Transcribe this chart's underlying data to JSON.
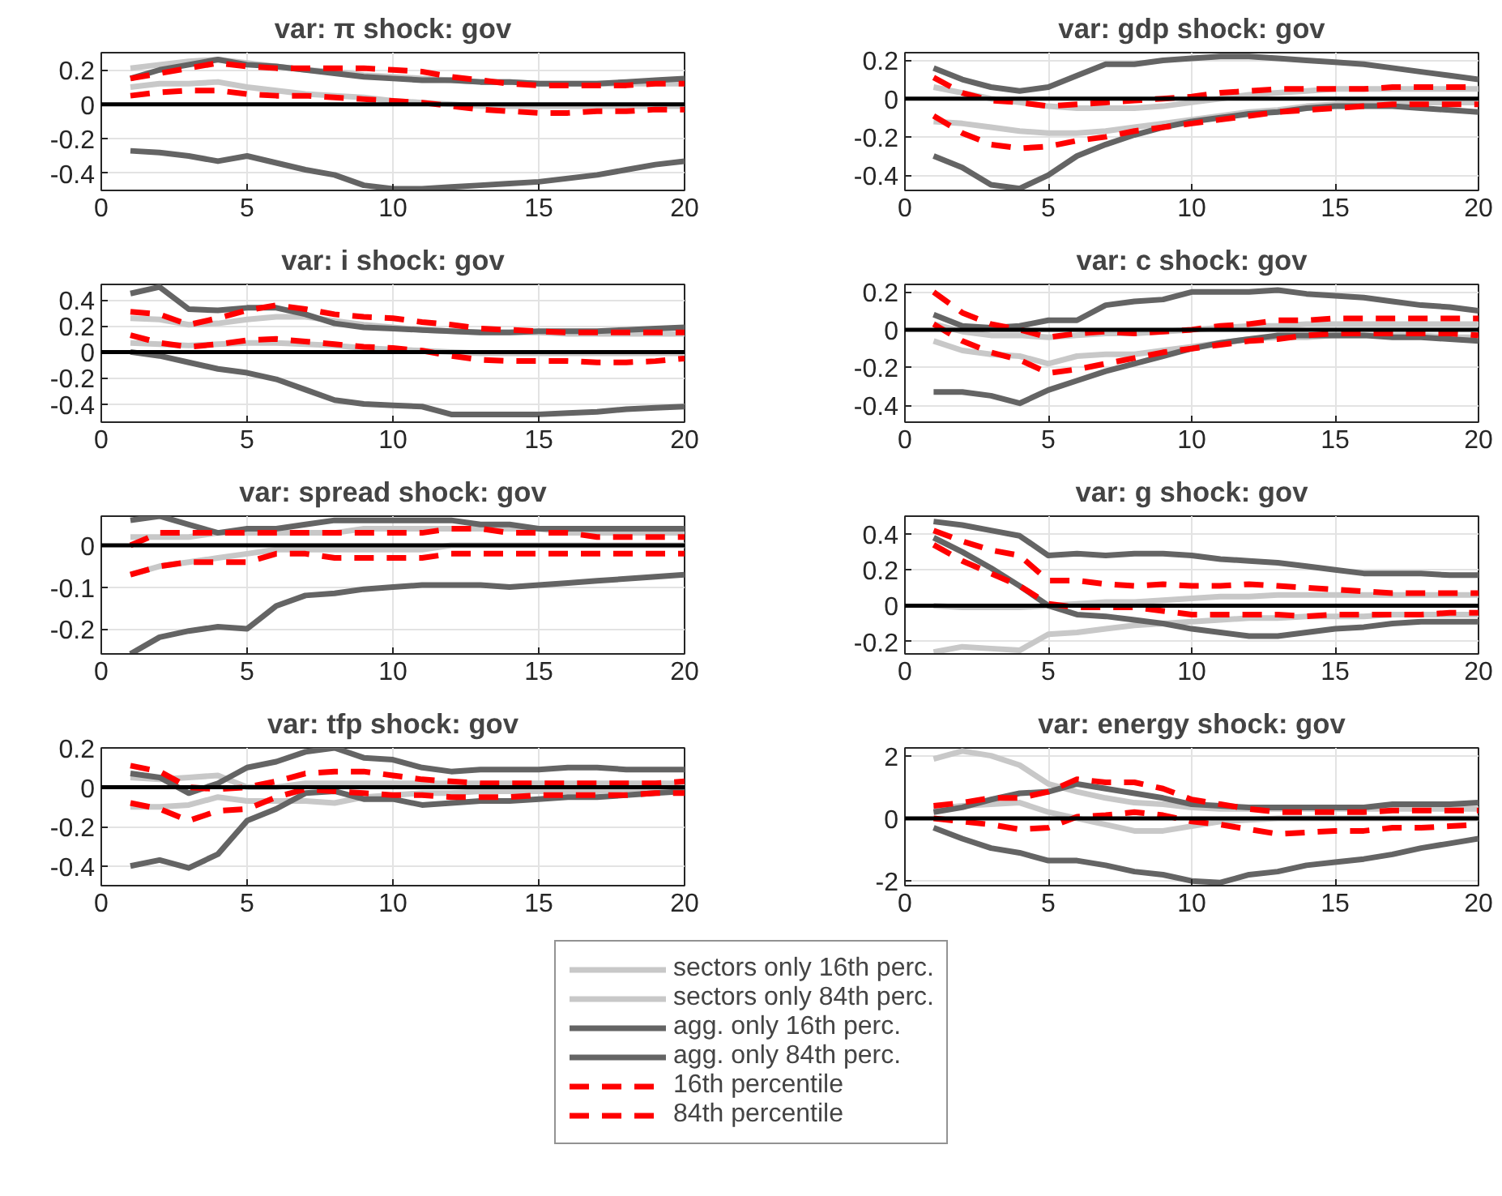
{
  "chart_data": [
    {
      "type": "line",
      "title": "var: π shock: gov",
      "x": [
        1,
        2,
        3,
        4,
        5,
        6,
        7,
        8,
        9,
        10,
        11,
        12,
        13,
        14,
        15,
        16,
        17,
        18,
        19,
        20
      ],
      "xlim": [
        0,
        20
      ],
      "xticks": [
        0,
        5,
        10,
        15,
        20
      ],
      "ylim": [
        -0.5,
        0.3
      ],
      "yticks": [
        -0.4,
        -0.2,
        0,
        0.2
      ],
      "grid": true,
      "legend": "bottom",
      "ref_lines": [
        {
          "axis": "y",
          "value": 0,
          "color": "#000000"
        }
      ],
      "series": [
        {
          "name": "sectors only 16th perc.",
          "color": "#c8c8c8",
          "line_style": "solid",
          "values": [
            0.1,
            0.12,
            0.12,
            0.13,
            0.1,
            0.08,
            0.06,
            0.05,
            0.04,
            0.02,
            0.01,
            0.0,
            -0.01,
            -0.01,
            -0.01,
            -0.01,
            -0.01,
            -0.01,
            -0.01,
            -0.01
          ]
        },
        {
          "name": "sectors only 84th perc.",
          "color": "#c8c8c8",
          "line_style": "solid",
          "values": [
            0.21,
            0.23,
            0.25,
            0.26,
            0.24,
            0.22,
            0.2,
            0.19,
            0.17,
            0.16,
            0.15,
            0.14,
            0.13,
            0.13,
            0.12,
            0.12,
            0.12,
            0.12,
            0.12,
            0.12
          ]
        },
        {
          "name": "agg. only 16th perc.",
          "color": "#646464",
          "line_style": "solid",
          "values": [
            -0.27,
            -0.28,
            -0.3,
            -0.33,
            -0.3,
            -0.34,
            -0.38,
            -0.41,
            -0.47,
            -0.49,
            -0.49,
            -0.48,
            -0.47,
            -0.46,
            -0.45,
            -0.43,
            -0.41,
            -0.38,
            -0.35,
            -0.33
          ]
        },
        {
          "name": "agg. only 84th perc.",
          "color": "#646464",
          "line_style": "solid",
          "values": [
            0.15,
            0.2,
            0.23,
            0.26,
            0.23,
            0.22,
            0.2,
            0.18,
            0.16,
            0.15,
            0.14,
            0.14,
            0.13,
            0.13,
            0.12,
            0.12,
            0.12,
            0.13,
            0.14,
            0.15
          ]
        },
        {
          "name": "16th percentile",
          "color": "#ff0000",
          "line_style": "dashed",
          "values": [
            0.05,
            0.07,
            0.08,
            0.08,
            0.06,
            0.05,
            0.05,
            0.04,
            0.03,
            0.02,
            0.01,
            -0.01,
            -0.03,
            -0.04,
            -0.05,
            -0.05,
            -0.04,
            -0.04,
            -0.03,
            -0.03
          ]
        },
        {
          "name": "84th percentile",
          "color": "#ff0000",
          "line_style": "dashed",
          "values": [
            0.15,
            0.18,
            0.21,
            0.24,
            0.22,
            0.21,
            0.21,
            0.21,
            0.21,
            0.2,
            0.19,
            0.16,
            0.14,
            0.12,
            0.11,
            0.11,
            0.11,
            0.11,
            0.12,
            0.12
          ]
        }
      ]
    },
    {
      "type": "line",
      "title": "var: gdp shock: gov",
      "x": [
        1,
        2,
        3,
        4,
        5,
        6,
        7,
        8,
        9,
        10,
        11,
        12,
        13,
        14,
        15,
        16,
        17,
        18,
        19,
        20
      ],
      "xlim": [
        0,
        20
      ],
      "xticks": [
        0,
        5,
        10,
        15,
        20
      ],
      "ylim": [
        -0.48,
        0.24
      ],
      "yticks": [
        -0.4,
        -0.2,
        0,
        0.2
      ],
      "grid": true,
      "ref_lines": [
        {
          "axis": "y",
          "value": 0,
          "color": "#000000"
        }
      ],
      "series": [
        {
          "color": "#c8c8c8",
          "line_style": "solid",
          "values": [
            -0.12,
            -0.13,
            -0.15,
            -0.17,
            -0.18,
            -0.18,
            -0.17,
            -0.15,
            -0.13,
            -0.11,
            -0.09,
            -0.07,
            -0.06,
            -0.04,
            -0.03,
            -0.02,
            -0.02,
            -0.02,
            -0.02,
            -0.02
          ]
        },
        {
          "color": "#c8c8c8",
          "line_style": "solid",
          "values": [
            0.06,
            0.03,
            0.0,
            -0.02,
            -0.04,
            -0.05,
            -0.05,
            -0.05,
            -0.04,
            -0.02,
            0.0,
            0.02,
            0.03,
            0.04,
            0.05,
            0.05,
            0.05,
            0.05,
            0.05,
            0.05
          ]
        },
        {
          "color": "#646464",
          "line_style": "solid",
          "values": [
            -0.3,
            -0.36,
            -0.45,
            -0.47,
            -0.4,
            -0.3,
            -0.24,
            -0.19,
            -0.15,
            -0.12,
            -0.1,
            -0.08,
            -0.07,
            -0.05,
            -0.04,
            -0.04,
            -0.04,
            -0.05,
            -0.06,
            -0.07
          ]
        },
        {
          "color": "#646464",
          "line_style": "solid",
          "values": [
            0.16,
            0.1,
            0.06,
            0.04,
            0.06,
            0.12,
            0.18,
            0.18,
            0.2,
            0.21,
            0.22,
            0.22,
            0.21,
            0.2,
            0.19,
            0.18,
            0.16,
            0.14,
            0.12,
            0.1
          ]
        },
        {
          "color": "#ff0000",
          "line_style": "dashed",
          "values": [
            -0.09,
            -0.18,
            -0.24,
            -0.26,
            -0.25,
            -0.22,
            -0.2,
            -0.17,
            -0.15,
            -0.13,
            -0.11,
            -0.09,
            -0.07,
            -0.06,
            -0.05,
            -0.04,
            -0.03,
            -0.03,
            -0.03,
            -0.03
          ]
        },
        {
          "color": "#ff0000",
          "line_style": "dashed",
          "values": [
            0.11,
            0.03,
            -0.01,
            -0.02,
            -0.04,
            -0.03,
            -0.02,
            -0.01,
            0.0,
            0.01,
            0.03,
            0.04,
            0.05,
            0.05,
            0.05,
            0.05,
            0.06,
            0.06,
            0.06,
            0.06
          ]
        }
      ]
    },
    {
      "type": "line",
      "title": "var: i shock: gov",
      "x": [
        1,
        2,
        3,
        4,
        5,
        6,
        7,
        8,
        9,
        10,
        11,
        12,
        13,
        14,
        15,
        16,
        17,
        18,
        19,
        20
      ],
      "xlim": [
        0,
        20
      ],
      "xticks": [
        0,
        5,
        10,
        15,
        20
      ],
      "ylim": [
        -0.54,
        0.52
      ],
      "yticks": [
        -0.4,
        -0.2,
        0,
        0.2,
        0.4
      ],
      "grid": true,
      "ref_lines": [
        {
          "axis": "y",
          "value": 0,
          "color": "#000000"
        }
      ],
      "series": [
        {
          "color": "#c8c8c8",
          "line_style": "solid",
          "values": [
            0.07,
            0.06,
            0.05,
            0.06,
            0.07,
            0.07,
            0.06,
            0.05,
            0.03,
            0.02,
            0.01,
            0.0,
            -0.01,
            -0.01,
            -0.01,
            -0.01,
            -0.01,
            -0.01,
            -0.01,
            -0.01
          ]
        },
        {
          "color": "#c8c8c8",
          "line_style": "solid",
          "values": [
            0.26,
            0.25,
            0.21,
            0.22,
            0.25,
            0.27,
            0.27,
            0.24,
            0.21,
            0.19,
            0.17,
            0.16,
            0.15,
            0.15,
            0.15,
            0.14,
            0.14,
            0.14,
            0.14,
            0.14
          ]
        },
        {
          "color": "#646464",
          "line_style": "solid",
          "values": [
            0.0,
            -0.03,
            -0.08,
            -0.13,
            -0.16,
            -0.21,
            -0.29,
            -0.37,
            -0.4,
            -0.41,
            -0.42,
            -0.48,
            -0.48,
            -0.48,
            -0.48,
            -0.47,
            -0.46,
            -0.44,
            -0.43,
            -0.42
          ]
        },
        {
          "color": "#646464",
          "line_style": "solid",
          "values": [
            0.45,
            0.5,
            0.33,
            0.32,
            0.34,
            0.34,
            0.29,
            0.22,
            0.19,
            0.18,
            0.17,
            0.16,
            0.15,
            0.15,
            0.16,
            0.16,
            0.16,
            0.17,
            0.18,
            0.19
          ]
        },
        {
          "color": "#ff0000",
          "line_style": "dashed",
          "values": [
            0.13,
            0.07,
            0.04,
            0.06,
            0.09,
            0.1,
            0.08,
            0.06,
            0.04,
            0.03,
            0.01,
            -0.03,
            -0.06,
            -0.07,
            -0.07,
            -0.07,
            -0.08,
            -0.08,
            -0.07,
            -0.05
          ]
        },
        {
          "color": "#ff0000",
          "line_style": "dashed",
          "values": [
            0.31,
            0.29,
            0.21,
            0.26,
            0.32,
            0.36,
            0.33,
            0.29,
            0.27,
            0.26,
            0.23,
            0.21,
            0.18,
            0.17,
            0.16,
            0.15,
            0.15,
            0.15,
            0.15,
            0.15
          ]
        }
      ]
    },
    {
      "type": "line",
      "title": "var: c shock: gov",
      "x": [
        1,
        2,
        3,
        4,
        5,
        6,
        7,
        8,
        9,
        10,
        11,
        12,
        13,
        14,
        15,
        16,
        17,
        18,
        19,
        20
      ],
      "xlim": [
        0,
        20
      ],
      "xticks": [
        0,
        5,
        10,
        15,
        20
      ],
      "ylim": [
        -0.49,
        0.24
      ],
      "yticks": [
        -0.4,
        -0.2,
        0,
        0.2
      ],
      "grid": true,
      "ref_lines": [
        {
          "axis": "y",
          "value": 0,
          "color": "#000000"
        }
      ],
      "series": [
        {
          "color": "#c8c8c8",
          "line_style": "solid",
          "values": [
            -0.06,
            -0.11,
            -0.13,
            -0.14,
            -0.18,
            -0.14,
            -0.13,
            -0.13,
            -0.11,
            -0.09,
            -0.07,
            -0.05,
            -0.04,
            -0.04,
            -0.03,
            -0.03,
            -0.03,
            -0.03,
            -0.04,
            -0.04
          ]
        },
        {
          "color": "#c8c8c8",
          "line_style": "solid",
          "values": [
            0.03,
            -0.01,
            -0.03,
            -0.03,
            -0.04,
            -0.03,
            -0.02,
            -0.02,
            -0.01,
            0.0,
            0.01,
            0.02,
            0.02,
            0.03,
            0.03,
            0.03,
            0.03,
            0.03,
            0.03,
            0.03
          ]
        },
        {
          "color": "#646464",
          "line_style": "solid",
          "values": [
            -0.33,
            -0.33,
            -0.35,
            -0.39,
            -0.32,
            -0.27,
            -0.22,
            -0.18,
            -0.14,
            -0.1,
            -0.07,
            -0.05,
            -0.03,
            -0.03,
            -0.03,
            -0.03,
            -0.04,
            -0.04,
            -0.05,
            -0.06
          ]
        },
        {
          "color": "#646464",
          "line_style": "solid",
          "values": [
            0.08,
            0.02,
            0.01,
            0.02,
            0.05,
            0.05,
            0.13,
            0.15,
            0.16,
            0.2,
            0.2,
            0.2,
            0.21,
            0.19,
            0.18,
            0.17,
            0.15,
            0.13,
            0.12,
            0.1
          ]
        },
        {
          "color": "#ff0000",
          "line_style": "dashed",
          "values": [
            0.03,
            -0.06,
            -0.12,
            -0.16,
            -0.23,
            -0.21,
            -0.18,
            -0.15,
            -0.12,
            -0.1,
            -0.08,
            -0.06,
            -0.05,
            -0.03,
            -0.02,
            -0.02,
            -0.02,
            -0.02,
            -0.02,
            -0.03
          ]
        },
        {
          "color": "#ff0000",
          "line_style": "dashed",
          "values": [
            0.2,
            0.09,
            0.03,
            0.0,
            -0.04,
            -0.02,
            -0.01,
            -0.02,
            -0.01,
            0.0,
            0.02,
            0.03,
            0.05,
            0.05,
            0.06,
            0.06,
            0.06,
            0.06,
            0.06,
            0.06
          ]
        }
      ]
    },
    {
      "type": "line",
      "title": "var: spread shock: gov",
      "x": [
        1,
        2,
        3,
        4,
        5,
        6,
        7,
        8,
        9,
        10,
        11,
        12,
        13,
        14,
        15,
        16,
        17,
        18,
        19,
        20
      ],
      "xlim": [
        0,
        20
      ],
      "xticks": [
        0,
        5,
        10,
        15,
        20
      ],
      "ylim": [
        -0.26,
        0.07
      ],
      "yticks": [
        -0.2,
        -0.1,
        0
      ],
      "grid": true,
      "ref_lines": [
        {
          "axis": "y",
          "value": 0,
          "color": "#000000"
        }
      ],
      "series": [
        {
          "color": "#c8c8c8",
          "line_style": "solid",
          "values": [
            -0.07,
            -0.05,
            -0.04,
            -0.03,
            -0.02,
            -0.01,
            -0.01,
            -0.01,
            -0.01,
            -0.01,
            -0.01,
            0.0,
            0.0,
            0.0,
            0.0,
            0.0,
            0.0,
            0.0,
            0.0,
            0.0
          ]
        },
        {
          "color": "#c8c8c8",
          "line_style": "solid",
          "values": [
            0.02,
            0.02,
            0.02,
            0.03,
            0.03,
            0.03,
            0.03,
            0.03,
            0.04,
            0.04,
            0.04,
            0.04,
            0.04,
            0.04,
            0.04,
            0.03,
            0.03,
            0.03,
            0.03,
            0.03
          ]
        },
        {
          "color": "#646464",
          "line_style": "solid",
          "values": [
            -0.26,
            -0.22,
            -0.205,
            -0.195,
            -0.2,
            -0.145,
            -0.12,
            -0.115,
            -0.105,
            -0.1,
            -0.095,
            -0.095,
            -0.095,
            -0.1,
            -0.095,
            -0.09,
            -0.085,
            -0.08,
            -0.075,
            -0.07
          ]
        },
        {
          "color": "#646464",
          "line_style": "solid",
          "values": [
            0.06,
            0.07,
            0.05,
            0.03,
            0.04,
            0.04,
            0.05,
            0.06,
            0.06,
            0.06,
            0.06,
            0.06,
            0.05,
            0.05,
            0.04,
            0.04,
            0.04,
            0.04,
            0.04,
            0.04
          ]
        },
        {
          "color": "#ff0000",
          "line_style": "dashed",
          "values": [
            -0.07,
            -0.05,
            -0.04,
            -0.04,
            -0.04,
            -0.02,
            -0.02,
            -0.03,
            -0.03,
            -0.03,
            -0.03,
            -0.02,
            -0.02,
            -0.02,
            -0.02,
            -0.02,
            -0.02,
            -0.02,
            -0.02,
            -0.02
          ]
        },
        {
          "color": "#ff0000",
          "line_style": "dashed",
          "values": [
            0.0,
            0.03,
            0.03,
            0.03,
            0.03,
            0.03,
            0.03,
            0.03,
            0.03,
            0.03,
            0.03,
            0.04,
            0.04,
            0.03,
            0.03,
            0.03,
            0.02,
            0.02,
            0.02,
            0.02
          ]
        }
      ]
    },
    {
      "type": "line",
      "title": "var: g shock: gov",
      "x": [
        1,
        2,
        3,
        4,
        5,
        6,
        7,
        8,
        9,
        10,
        11,
        12,
        13,
        14,
        15,
        16,
        17,
        18,
        19,
        20
      ],
      "xlim": [
        0,
        20
      ],
      "xticks": [
        0,
        5,
        10,
        15,
        20
      ],
      "ylim": [
        -0.27,
        0.5
      ],
      "yticks": [
        -0.2,
        0,
        0.2,
        0.4
      ],
      "grid": true,
      "ref_lines": [
        {
          "axis": "y",
          "value": 0,
          "color": "#000000"
        }
      ],
      "series": [
        {
          "color": "#c8c8c8",
          "line_style": "solid",
          "values": [
            -0.26,
            -0.23,
            -0.24,
            -0.25,
            -0.16,
            -0.15,
            -0.13,
            -0.11,
            -0.1,
            -0.09,
            -0.08,
            -0.07,
            -0.07,
            -0.06,
            -0.06,
            -0.06,
            -0.05,
            -0.05,
            -0.05,
            -0.05
          ]
        },
        {
          "color": "#c8c8c8",
          "line_style": "solid",
          "values": [
            0.0,
            -0.01,
            -0.01,
            -0.01,
            0.0,
            0.01,
            0.02,
            0.02,
            0.03,
            0.04,
            0.05,
            0.05,
            0.06,
            0.06,
            0.06,
            0.06,
            0.06,
            0.06,
            0.06,
            0.06
          ]
        },
        {
          "color": "#646464",
          "line_style": "solid",
          "values": [
            0.38,
            0.3,
            0.21,
            0.11,
            0.0,
            -0.05,
            -0.06,
            -0.08,
            -0.1,
            -0.13,
            -0.15,
            -0.17,
            -0.17,
            -0.15,
            -0.13,
            -0.12,
            -0.1,
            -0.09,
            -0.09,
            -0.09
          ]
        },
        {
          "color": "#646464",
          "line_style": "solid",
          "values": [
            0.47,
            0.45,
            0.42,
            0.39,
            0.28,
            0.29,
            0.28,
            0.29,
            0.29,
            0.28,
            0.26,
            0.25,
            0.24,
            0.22,
            0.2,
            0.18,
            0.18,
            0.18,
            0.17,
            0.17
          ]
        },
        {
          "color": "#ff0000",
          "line_style": "dashed",
          "values": [
            0.34,
            0.25,
            0.18,
            0.11,
            0.01,
            -0.01,
            -0.01,
            -0.01,
            -0.03,
            -0.05,
            -0.05,
            -0.05,
            -0.05,
            -0.06,
            -0.05,
            -0.05,
            -0.05,
            -0.05,
            -0.04,
            -0.04
          ]
        },
        {
          "color": "#ff0000",
          "line_style": "dashed",
          "values": [
            0.42,
            0.36,
            0.31,
            0.28,
            0.14,
            0.14,
            0.12,
            0.11,
            0.12,
            0.11,
            0.11,
            0.12,
            0.11,
            0.1,
            0.09,
            0.08,
            0.07,
            0.07,
            0.07,
            0.07
          ]
        }
      ]
    },
    {
      "type": "line",
      "title": "var: tfp shock: gov",
      "x": [
        1,
        2,
        3,
        4,
        5,
        6,
        7,
        8,
        9,
        10,
        11,
        12,
        13,
        14,
        15,
        16,
        17,
        18,
        19,
        20
      ],
      "xlim": [
        0,
        20
      ],
      "xticks": [
        0,
        5,
        10,
        15,
        20
      ],
      "ylim": [
        -0.5,
        0.2
      ],
      "yticks": [
        -0.4,
        -0.2,
        0,
        0.2
      ],
      "grid": true,
      "ref_lines": [
        {
          "axis": "y",
          "value": 0,
          "color": "#000000"
        }
      ],
      "series": [
        {
          "color": "#c8c8c8",
          "line_style": "solid",
          "values": [
            -0.1,
            -0.1,
            -0.09,
            -0.05,
            -0.07,
            -0.07,
            -0.07,
            -0.08,
            -0.05,
            -0.04,
            -0.03,
            -0.03,
            -0.02,
            -0.02,
            -0.02,
            -0.02,
            -0.02,
            -0.01,
            -0.01,
            -0.01
          ]
        },
        {
          "color": "#c8c8c8",
          "line_style": "solid",
          "values": [
            0.05,
            0.04,
            0.05,
            0.06,
            0.0,
            0.0,
            0.02,
            0.02,
            0.02,
            0.02,
            0.02,
            0.02,
            0.02,
            0.02,
            0.02,
            0.02,
            0.02,
            0.02,
            0.02,
            0.02
          ]
        },
        {
          "color": "#646464",
          "line_style": "solid",
          "values": [
            -0.4,
            -0.37,
            -0.41,
            -0.34,
            -0.17,
            -0.11,
            -0.03,
            -0.02,
            -0.06,
            -0.06,
            -0.09,
            -0.08,
            -0.07,
            -0.07,
            -0.06,
            -0.05,
            -0.05,
            -0.04,
            -0.03,
            -0.02
          ]
        },
        {
          "color": "#646464",
          "line_style": "solid",
          "values": [
            0.07,
            0.05,
            -0.03,
            0.02,
            0.1,
            0.13,
            0.18,
            0.2,
            0.15,
            0.14,
            0.1,
            0.08,
            0.09,
            0.09,
            0.09,
            0.1,
            0.1,
            0.09,
            0.09,
            0.09
          ]
        },
        {
          "color": "#ff0000",
          "line_style": "dashed",
          "values": [
            -0.08,
            -0.11,
            -0.17,
            -0.12,
            -0.11,
            -0.05,
            -0.01,
            -0.02,
            -0.03,
            -0.04,
            -0.04,
            -0.05,
            -0.05,
            -0.05,
            -0.04,
            -0.04,
            -0.04,
            -0.04,
            -0.03,
            -0.03
          ]
        },
        {
          "color": "#ff0000",
          "line_style": "dashed",
          "values": [
            0.11,
            0.08,
            0.0,
            -0.01,
            0.0,
            0.03,
            0.07,
            0.08,
            0.08,
            0.06,
            0.04,
            0.03,
            0.02,
            0.02,
            0.02,
            0.02,
            0.02,
            0.02,
            0.02,
            0.03
          ]
        }
      ]
    },
    {
      "type": "line",
      "title": "var: energy shock: gov",
      "x": [
        1,
        2,
        3,
        4,
        5,
        6,
        7,
        8,
        9,
        10,
        11,
        12,
        13,
        14,
        15,
        16,
        17,
        18,
        19,
        20
      ],
      "xlim": [
        0,
        20
      ],
      "xticks": [
        0,
        5,
        10,
        15,
        20
      ],
      "ylim": [
        -2.15,
        2.25
      ],
      "yticks": [
        -2,
        0,
        2
      ],
      "grid": true,
      "ref_lines": [
        {
          "axis": "y",
          "value": 0,
          "color": "#000000"
        }
      ],
      "series": [
        {
          "color": "#c8c8c8",
          "line_style": "solid",
          "values": [
            0.3,
            0.4,
            0.45,
            0.5,
            0.2,
            0.0,
            -0.2,
            -0.4,
            -0.4,
            -0.25,
            -0.1,
            -0.05,
            0.0,
            0.0,
            0.0,
            0.0,
            0.0,
            0.0,
            0.0,
            0.0
          ]
        },
        {
          "color": "#c8c8c8",
          "line_style": "solid",
          "values": [
            1.9,
            2.15,
            2.0,
            1.7,
            1.1,
            0.85,
            0.65,
            0.5,
            0.45,
            0.35,
            0.3,
            0.3,
            0.3,
            0.3,
            0.3,
            0.3,
            0.3,
            0.3,
            0.3,
            0.3
          ]
        },
        {
          "color": "#646464",
          "line_style": "solid",
          "values": [
            -0.3,
            -0.65,
            -0.95,
            -1.1,
            -1.35,
            -1.35,
            -1.5,
            -1.7,
            -1.8,
            -2.0,
            -2.05,
            -1.8,
            -1.7,
            -1.5,
            -1.4,
            -1.3,
            -1.15,
            -0.95,
            -0.8,
            -0.65
          ]
        },
        {
          "color": "#646464",
          "line_style": "solid",
          "values": [
            0.2,
            0.35,
            0.6,
            0.8,
            0.85,
            1.1,
            0.95,
            0.8,
            0.65,
            0.45,
            0.4,
            0.35,
            0.35,
            0.35,
            0.35,
            0.35,
            0.45,
            0.45,
            0.45,
            0.5
          ]
        },
        {
          "color": "#ff0000",
          "line_style": "dashed",
          "values": [
            0.0,
            -0.1,
            -0.2,
            -0.35,
            -0.3,
            0.05,
            0.1,
            0.2,
            0.1,
            -0.1,
            -0.2,
            -0.35,
            -0.5,
            -0.45,
            -0.4,
            -0.4,
            -0.3,
            -0.3,
            -0.25,
            -0.2
          ]
        },
        {
          "color": "#ff0000",
          "line_style": "dashed",
          "values": [
            0.4,
            0.5,
            0.65,
            0.65,
            0.85,
            1.25,
            1.15,
            1.15,
            0.95,
            0.6,
            0.45,
            0.3,
            0.2,
            0.2,
            0.2,
            0.2,
            0.25,
            0.25,
            0.25,
            0.25
          ]
        }
      ]
    }
  ]
}
